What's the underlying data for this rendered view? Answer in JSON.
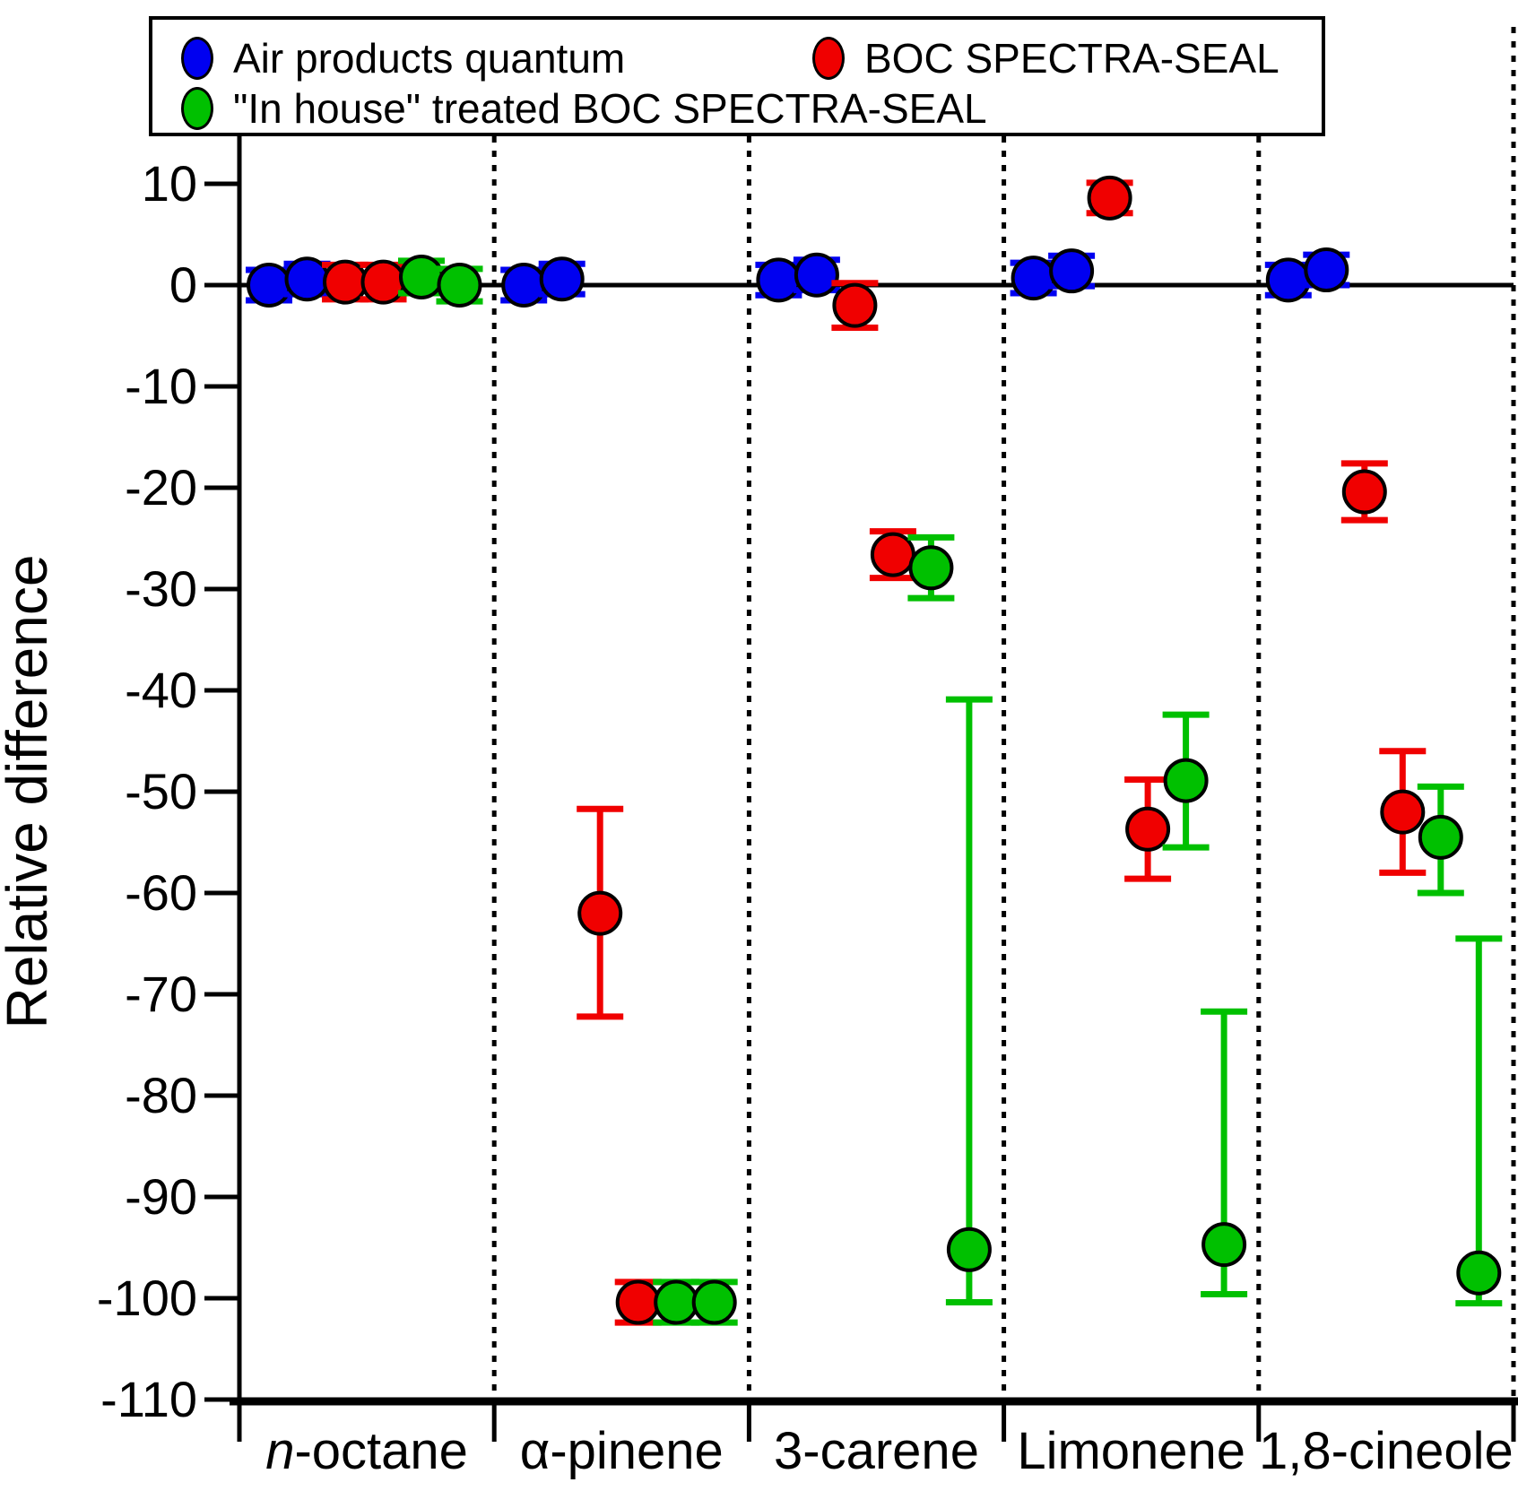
{
  "figure": {
    "background": "#ffffff",
    "legend": {
      "entries": [
        {
          "key": "air-products-quantum",
          "label": "Air products quantum",
          "color": "#0000f0"
        },
        {
          "key": "boc-spectra-seal",
          "label": "BOC SPECTRA-SEAL",
          "color": "#f00000"
        },
        {
          "key": "in-house-treated-boc-spectra-seal",
          "label": "\"In house\" treated BOC SPECTRA-SEAL",
          "color": "#00c000"
        }
      ]
    }
  },
  "chart_data": {
    "type": "scatter",
    "title": "",
    "xlabel": "",
    "ylabel": "Relative difference",
    "ylim": [
      -110,
      14.7
    ],
    "yticks": [
      10,
      0,
      -10,
      -20,
      -30,
      -40,
      -50,
      -60,
      -70,
      -80,
      -90,
      -100,
      -110
    ],
    "grid": false,
    "zero_line": true,
    "section_dividers": "dotted vertical lines between categories",
    "legend_position": "top",
    "categories": [
      "n-octane",
      "α-pinene",
      "3-carene",
      "Limonene",
      "1,8-cineole"
    ],
    "category_italic_prefix_len": [
      1,
      0,
      0,
      0,
      0
    ],
    "series": [
      {
        "name": "Air products quantum",
        "key": "air-products-quantum",
        "color": "#0000f0",
        "points": [
          {
            "category": "n-octane",
            "slot": 0,
            "value": 0.0,
            "err_plus": 1.5,
            "err_minus": 1.5
          },
          {
            "category": "n-octane",
            "slot": 1,
            "value": 0.6,
            "err_plus": 1.5,
            "err_minus": 1.5
          },
          {
            "category": "α-pinene",
            "slot": 0,
            "value": 0.0,
            "err_plus": 1.5,
            "err_minus": 1.5
          },
          {
            "category": "α-pinene",
            "slot": 1,
            "value": 0.6,
            "err_plus": 1.5,
            "err_minus": 1.5
          },
          {
            "category": "3-carene",
            "slot": 0,
            "value": 0.5,
            "err_plus": 1.5,
            "err_minus": 1.5
          },
          {
            "category": "3-carene",
            "slot": 1,
            "value": 1.0,
            "err_plus": 1.5,
            "err_minus": 1.5
          },
          {
            "category": "Limonene",
            "slot": 0,
            "value": 0.7,
            "err_plus": 1.5,
            "err_minus": 1.5
          },
          {
            "category": "Limonene",
            "slot": 1,
            "value": 1.4,
            "err_plus": 1.5,
            "err_minus": 1.5
          },
          {
            "category": "1,8-cineole",
            "slot": 0,
            "value": 0.5,
            "err_plus": 1.5,
            "err_minus": 1.5
          },
          {
            "category": "1,8-cineole",
            "slot": 1,
            "value": 1.5,
            "err_plus": 1.5,
            "err_minus": 1.5
          }
        ]
      },
      {
        "name": "BOC SPECTRA-SEAL",
        "key": "boc-spectra-seal",
        "color": "#f00000",
        "points": [
          {
            "category": "n-octane",
            "slot": 2,
            "value": 0.3,
            "err_plus": 1.7,
            "err_minus": 1.7
          },
          {
            "category": "n-octane",
            "slot": 3,
            "value": 0.3,
            "err_plus": 1.7,
            "err_minus": 1.7
          },
          {
            "category": "α-pinene",
            "slot": 2,
            "value": -62.0,
            "err_plus": 10.3,
            "err_minus": 10.2
          },
          {
            "category": "α-pinene",
            "slot": 3,
            "value": -100.4,
            "err_plus": 2.0,
            "err_minus": 2.0
          },
          {
            "category": "3-carene",
            "slot": 2,
            "value": -2.0,
            "err_plus": 2.2,
            "err_minus": 2.2
          },
          {
            "category": "3-carene",
            "slot": 3,
            "value": -26.6,
            "err_plus": 2.3,
            "err_minus": 2.3
          },
          {
            "category": "Limonene",
            "slot": 2,
            "value": 8.6,
            "err_plus": 1.5,
            "err_minus": 1.5
          },
          {
            "category": "Limonene",
            "slot": 3,
            "value": -53.7,
            "err_plus": 4.9,
            "err_minus": 4.9
          },
          {
            "category": "1,8-cineole",
            "slot": 2,
            "value": -20.4,
            "err_plus": 2.8,
            "err_minus": 2.8
          },
          {
            "category": "1,8-cineole",
            "slot": 3,
            "value": -52.0,
            "err_plus": 6.0,
            "err_minus": 6.0
          }
        ]
      },
      {
        "name": "\"In house\" treated BOC SPECTRA-SEAL",
        "key": "in-house-treated-boc-spectra-seal",
        "color": "#00c000",
        "points": [
          {
            "category": "n-octane",
            "slot": 4,
            "value": 0.8,
            "err_plus": 1.6,
            "err_minus": 1.6
          },
          {
            "category": "n-octane",
            "slot": 5,
            "value": 0.0,
            "err_plus": 1.6,
            "err_minus": 1.6
          },
          {
            "category": "α-pinene",
            "slot": 4,
            "value": -100.4,
            "err_plus": 2.0,
            "err_minus": 2.0
          },
          {
            "category": "α-pinene",
            "slot": 5,
            "value": -100.4,
            "err_plus": 2.0,
            "err_minus": 2.0
          },
          {
            "category": "3-carene",
            "slot": 4,
            "value": -27.9,
            "err_plus": 3.0,
            "err_minus": 3.0
          },
          {
            "category": "3-carene",
            "slot": 5,
            "value": -95.2,
            "err_plus": 54.3,
            "err_minus": 5.2
          },
          {
            "category": "Limonene",
            "slot": 4,
            "value": -48.9,
            "err_plus": 6.5,
            "err_minus": 6.6
          },
          {
            "category": "Limonene",
            "slot": 5,
            "value": -94.7,
            "err_plus": 23.0,
            "err_minus": 4.9
          },
          {
            "category": "1,8-cineole",
            "slot": 4,
            "value": -54.5,
            "err_plus": 5.0,
            "err_minus": 5.5
          },
          {
            "category": "1,8-cineole",
            "slot": 5,
            "value": -97.5,
            "err_plus": 33.0,
            "err_minus": 3.0
          }
        ]
      }
    ]
  }
}
